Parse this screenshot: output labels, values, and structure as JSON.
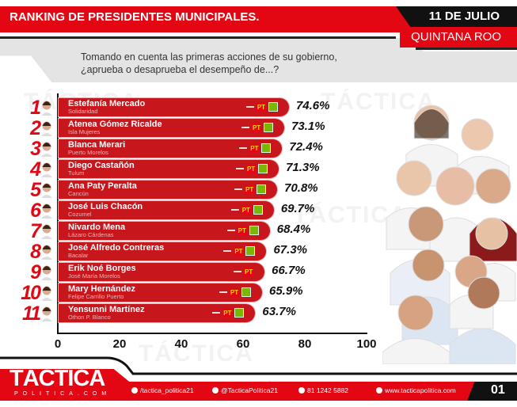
{
  "header": {
    "title": "RANKING DE PRESIDENTES MUNICIPALES.",
    "date": "11 DE JULIO",
    "region": "QUINTANA ROO"
  },
  "question": {
    "line1": "Tomando en cuenta las primeras acciones de su gobierno,",
    "line2": "¿aprueba o desaprueba el desempeño de...?"
  },
  "watermark": "TÁCTICA",
  "colors": {
    "brand_red": "#e30613",
    "bar_red": "#c8161d",
    "black": "#111111"
  },
  "chart_data": {
    "type": "bar",
    "orientation": "horizontal",
    "xlim": [
      0,
      100
    ],
    "xticks": [
      "0",
      "20",
      "40",
      "60",
      "80",
      "100"
    ],
    "ranks": [
      "1",
      "2",
      "3",
      "4",
      "5",
      "6",
      "7",
      "8",
      "9",
      "10",
      "11"
    ],
    "categories": [
      "Estefanía Mercado",
      "Atenea Gómez Ricalde",
      "Blanca Merari",
      "Diego Castañón",
      "Ana Paty Peralta",
      "José Luis Chacón",
      "Nivardo Mena",
      "José Alfredo Contreras",
      "Erik Noé Borges",
      "Mary Hernández",
      "Yensunni Martínez"
    ],
    "municipalities": [
      "Solidaridad",
      "Isla Mujeres",
      "Puerto Morelos",
      "Tulum",
      "Cancún",
      "Cozumel",
      "Lázaro Cárdenas",
      "Bacalar",
      "José María Morelos",
      "Felipe Carrillo Puerto",
      "Othon P. Blanco"
    ],
    "values": [
      74.6,
      73.1,
      72.4,
      71.3,
      70.8,
      69.7,
      68.4,
      67.3,
      66.7,
      65.9,
      63.7
    ],
    "labels": [
      "74.6%",
      "73.1%",
      "72.4%",
      "71.3%",
      "70.8%",
      "69.7%",
      "68.4%",
      "67.3%",
      "66.7%",
      "65.9%",
      "63.7%"
    ],
    "party_logos": [
      [
        "morena",
        "PT",
        "PVEM"
      ],
      [
        "morena",
        "PT",
        "PVEM"
      ],
      [
        "morena",
        "PT",
        "PVEM"
      ],
      [
        "morena",
        "PT",
        "PVEM"
      ],
      [
        "morena",
        "PT",
        "PVEM"
      ],
      [
        "morena",
        "PT",
        "PVEM"
      ],
      [
        "morena",
        "PT",
        "PVEM"
      ],
      [
        "morena",
        "PT",
        "PVEM"
      ],
      [
        "morena",
        "PT"
      ],
      [
        "morena",
        "PT",
        "PVEM"
      ],
      [
        "morena",
        "PT",
        "PVEM"
      ]
    ],
    "pt_label": "PT"
  },
  "footer": {
    "logo": "TÁCTICA",
    "logo_sub": "POLITICA.COM",
    "facebook": "/tactica_politica21",
    "instagram": "@TacticaPolitica21",
    "phone": "81 1242 5882",
    "website": "www.tacticapolitica.com",
    "page": "01"
  }
}
